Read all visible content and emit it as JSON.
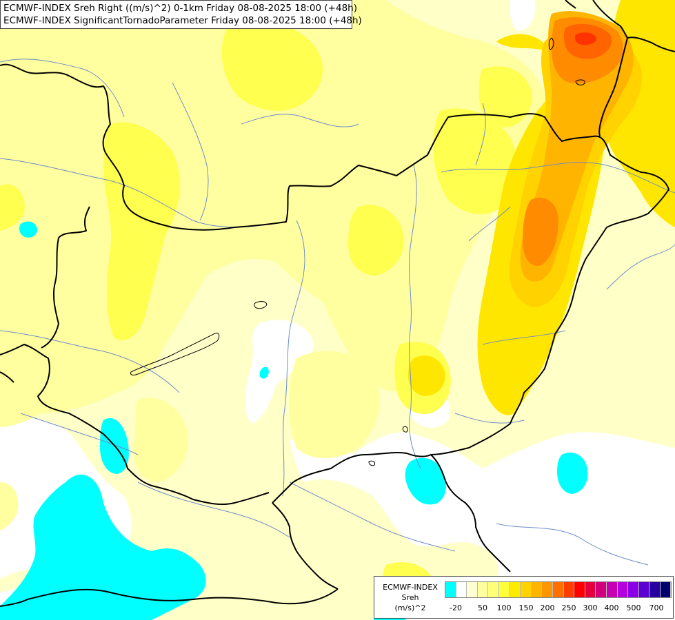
{
  "titles": {
    "line1": "ECMWF-INDEX Sreh Right ((m/s)^2) 0-1km Friday 08-08-2025 18:00 (+48h)",
    "line2": "ECMWF-INDEX SignificantTornadoParameter Friday 08-08-2025 18:00 (+48h)"
  },
  "legend": {
    "title_line1": "ECMWF-INDEX",
    "title_line2": "Sreh",
    "title_line3": "(m/s)^2",
    "colors": [
      "#00ffff",
      "#ffffff",
      "#ffffd2",
      "#ffffa0",
      "#ffff78",
      "#ffff3c",
      "#ffeb00",
      "#ffd200",
      "#ffb400",
      "#ff9600",
      "#ff6e00",
      "#ff3c00",
      "#ff0000",
      "#e6003c",
      "#d2007d",
      "#c800b4",
      "#b400dc",
      "#8c00e6",
      "#5a00d2",
      "#2800a0",
      "#00006e"
    ],
    "ticks": [
      "-20",
      "50",
      "100",
      "150",
      "200",
      "250",
      "300",
      "400",
      "500",
      "700"
    ]
  },
  "map_colors": {
    "base": "#ffffc8",
    "light_yellow": "#ffffa0",
    "yellow": "#ffff50",
    "gold": "#ffe600",
    "amber": "#ffd200",
    "orange": "#ffb400",
    "dark_orange": "#ff8c00",
    "red_orange": "#ff6400",
    "red": "#ff3200",
    "white": "#ffffff",
    "cyan": "#00ffff",
    "border_line": "#000000",
    "river_line": "#6e8cc8"
  }
}
